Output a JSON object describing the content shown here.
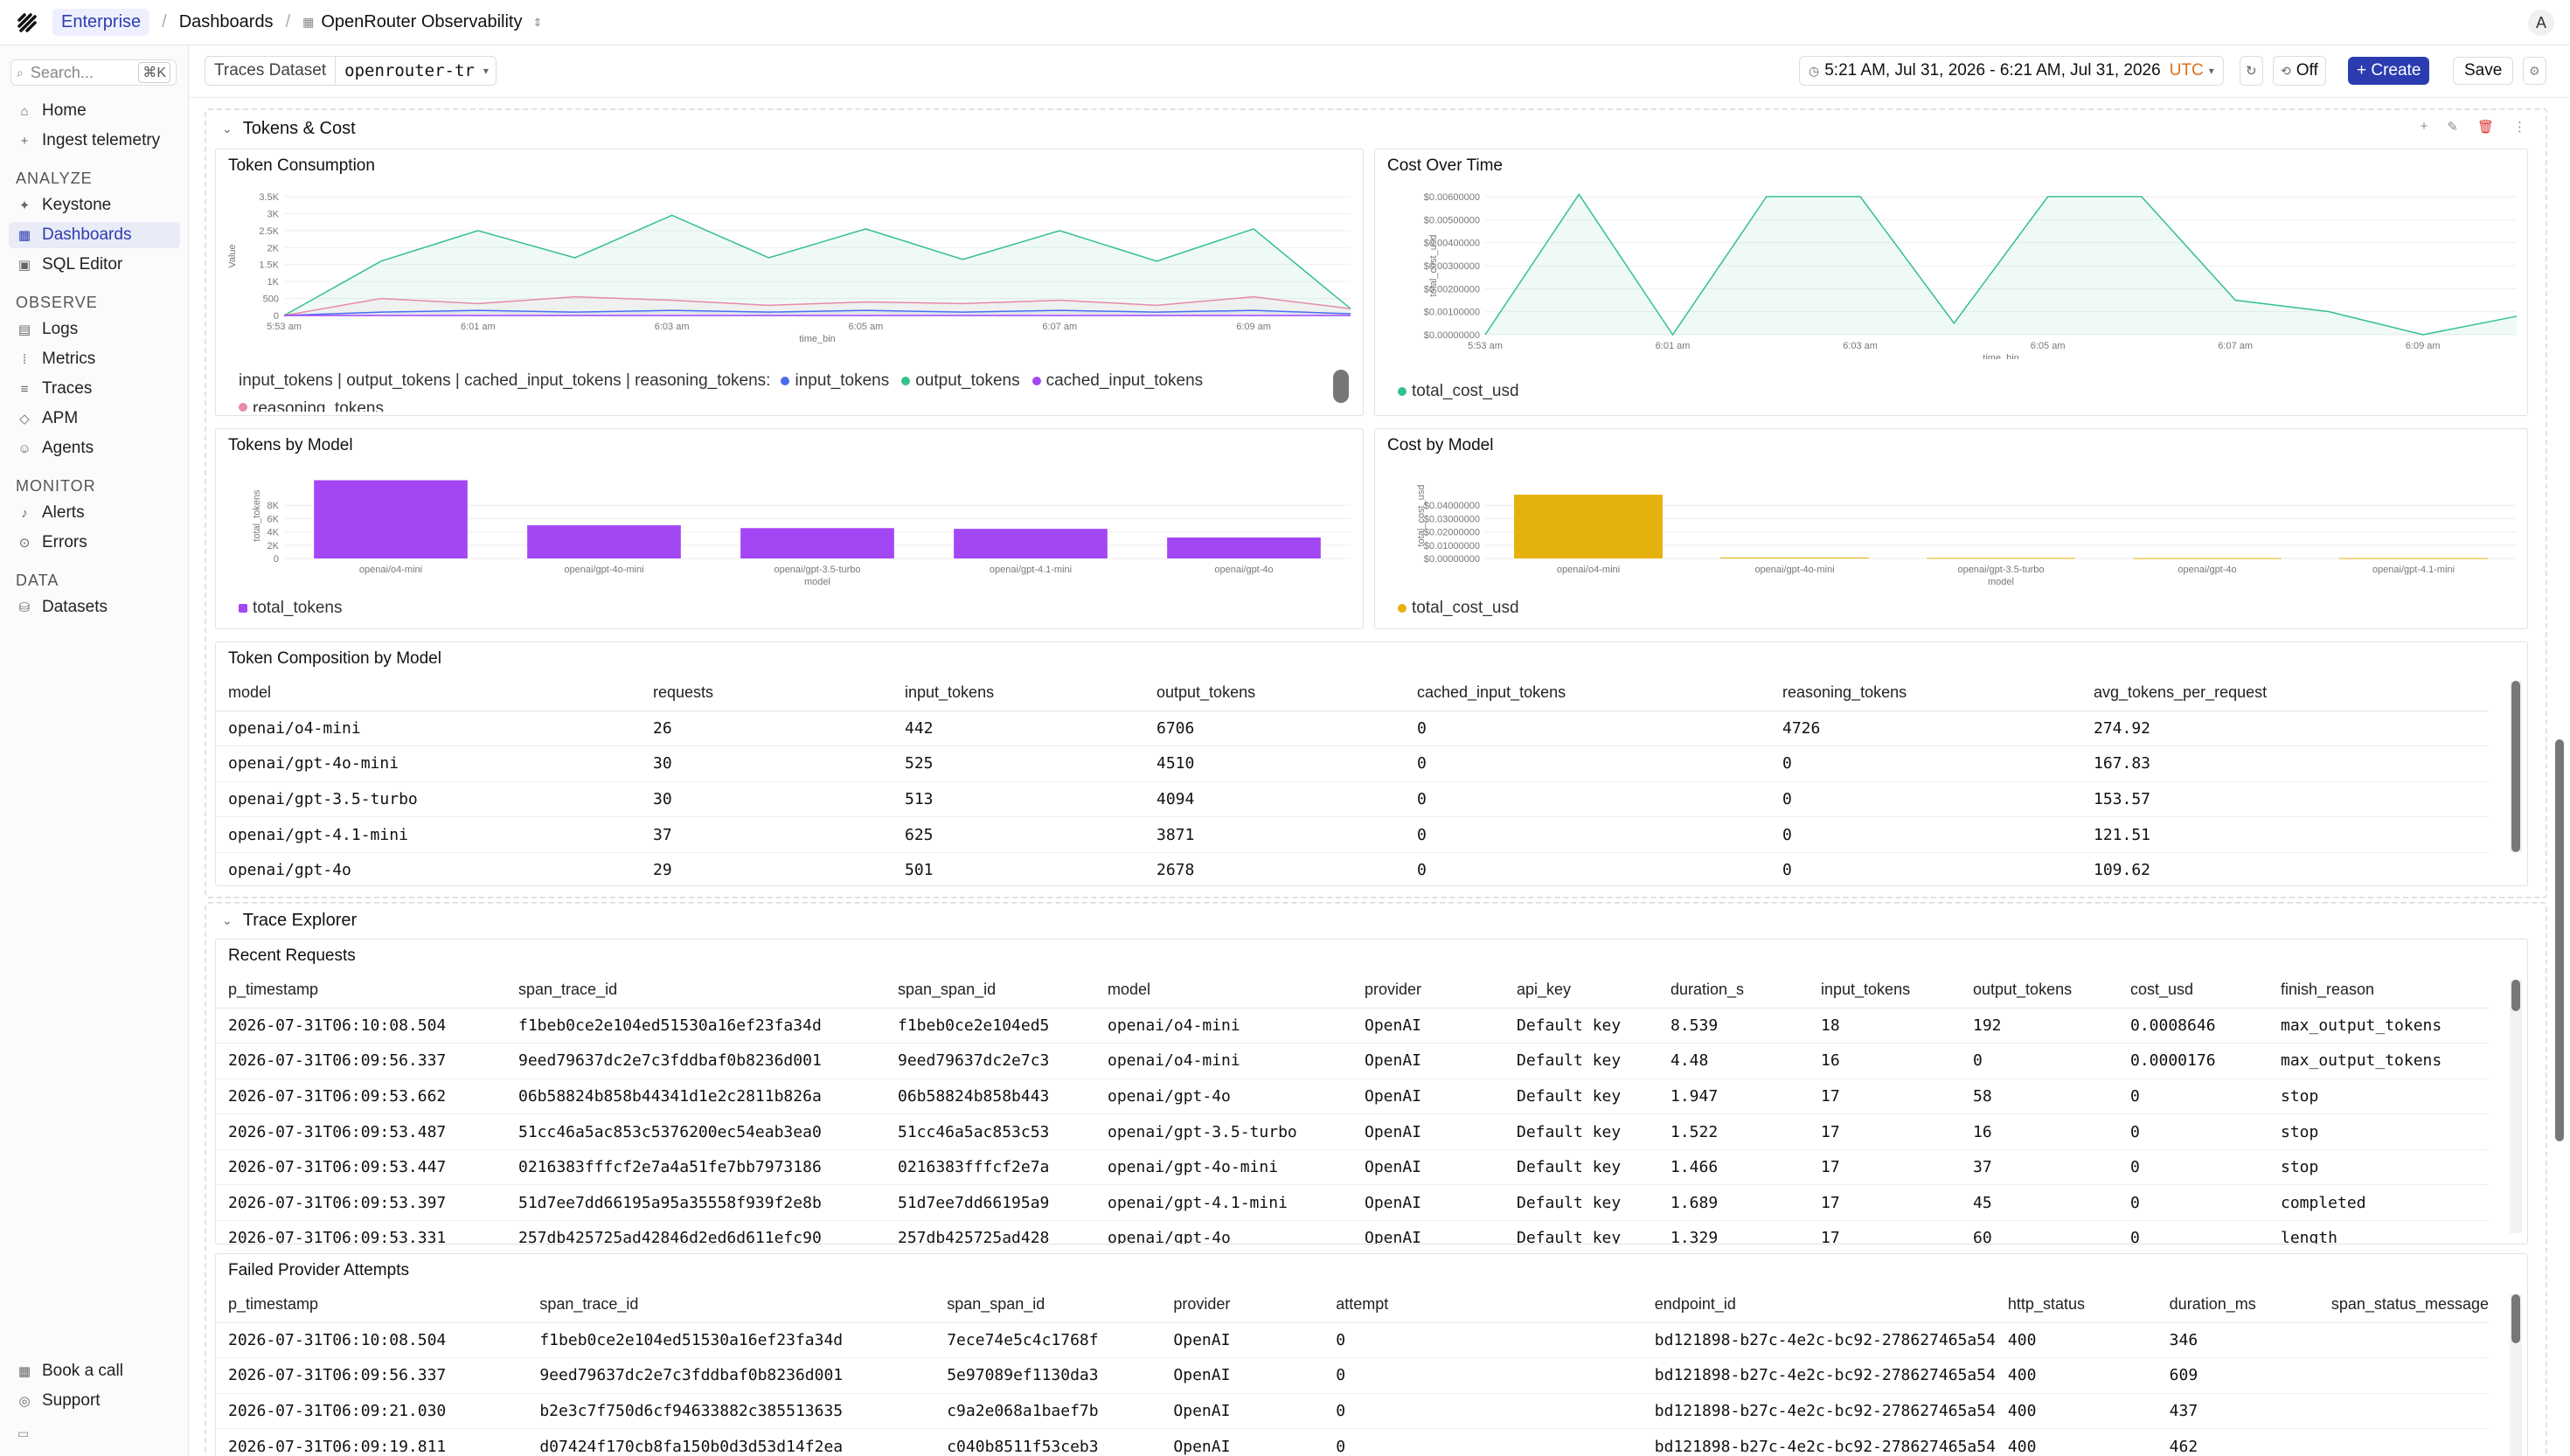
{
  "topbar": {
    "org": "Enterprise",
    "crumb_dashboards": "Dashboards",
    "crumb_dashboard": "OpenRouter Observability",
    "avatar": "A"
  },
  "sidebar": {
    "search_placeholder": "Search...",
    "search_shortcut": "⌘K",
    "top_items": [
      {
        "label": "Home",
        "icon": "home-icon"
      },
      {
        "label": "Ingest telemetry",
        "icon": "plus-icon"
      }
    ],
    "sections": [
      {
        "title": "ANALYZE",
        "items": [
          {
            "label": "Keystone",
            "icon": "sparkle-icon"
          },
          {
            "label": "Dashboards",
            "icon": "grid-icon"
          },
          {
            "label": "SQL Editor",
            "icon": "terminal-icon"
          }
        ]
      },
      {
        "title": "OBSERVE",
        "items": [
          {
            "label": "Logs",
            "icon": "document-icon"
          },
          {
            "label": "Metrics",
            "icon": "chart-icon"
          },
          {
            "label": "Traces",
            "icon": "traces-icon"
          },
          {
            "label": "APM",
            "icon": "apm-icon"
          },
          {
            "label": "Agents",
            "icon": "agent-icon"
          }
        ]
      },
      {
        "title": "MONITOR",
        "items": [
          {
            "label": "Alerts",
            "icon": "bell-icon"
          },
          {
            "label": "Errors",
            "icon": "error-icon"
          }
        ]
      },
      {
        "title": "DATA",
        "items": [
          {
            "label": "Datasets",
            "icon": "database-icon"
          }
        ]
      }
    ],
    "bottom_items": [
      {
        "label": "Book a call",
        "icon": "calendar-icon"
      },
      {
        "label": "Support",
        "icon": "support-icon"
      }
    ]
  },
  "toolbar": {
    "dataset_label": "Traces Dataset",
    "dataset_value": "openrouter-tr",
    "time_range": "5:21 AM, Jul 31, 2026 - 6:21 AM, Jul 31, 2026",
    "timezone": "UTC",
    "refresh": "Off",
    "create": "+ Create",
    "save": "Save"
  },
  "group1": {
    "title": "Tokens & Cost"
  },
  "group2": {
    "title": "Trace Explorer"
  },
  "colors": {
    "accent": "#2b3cb0",
    "green": "#34c08a",
    "blue": "#4b6cf0",
    "purple": "#a347f5",
    "pink": "#e88aa8",
    "gold": "#e5b10d"
  },
  "token_consumption": {
    "title": "Token Consumption",
    "legend_prefix": "input_tokens | output_tokens | cached_input_tokens | reasoning_tokens:",
    "legend": [
      "input_tokens",
      "output_tokens",
      "cached_input_tokens",
      "reasoning_tokens"
    ],
    "chart_data": {
      "type": "area",
      "x": [
        "5:53 am",
        "",
        "6:01 am",
        "",
        "6:03 am",
        "",
        "6:05 am",
        "",
        "6:07 am",
        "",
        "6:09 am",
        ""
      ],
      "xlabel": "time_bin",
      "ylabel": "Value",
      "yticks": [
        "0",
        "500",
        "1K",
        "1.5K",
        "2K",
        "2.5K",
        "3K",
        "3.5K"
      ],
      "ylim": [
        0,
        3500
      ],
      "series": [
        {
          "name": "output_tokens",
          "values": [
            0,
            1600,
            2500,
            1700,
            2950,
            1700,
            2550,
            1650,
            2500,
            1600,
            2550,
            200
          ]
        },
        {
          "name": "reasoning_tokens",
          "values": [
            0,
            500,
            350,
            550,
            450,
            300,
            400,
            350,
            450,
            300,
            550,
            200
          ]
        },
        {
          "name": "input_tokens",
          "values": [
            0,
            100,
            150,
            100,
            150,
            100,
            150,
            100,
            150,
            100,
            150,
            50
          ]
        },
        {
          "name": "cached_input_tokens",
          "values": [
            0,
            0,
            0,
            0,
            0,
            0,
            0,
            0,
            0,
            0,
            0,
            0
          ]
        }
      ]
    }
  },
  "cost_over_time": {
    "title": "Cost Over Time",
    "legend": [
      "total_cost_usd"
    ],
    "chart_data": {
      "type": "area",
      "x": [
        "5:53 am",
        "",
        "6:01 am",
        "",
        "6:03 am",
        "",
        "6:05 am",
        "",
        "6:07 am",
        "",
        "6:09 am",
        ""
      ],
      "xlabel": "time_bin",
      "ylabel": "total_cost_usd",
      "yticks": [
        "$0.00000000",
        "$0.00100000",
        "$0.00200000",
        "$0.00300000",
        "$0.00400000",
        "$0.00500000",
        "$0.00600000"
      ],
      "ylim": [
        0,
        0.006
      ],
      "series": [
        {
          "name": "total_cost_usd",
          "values": [
            0,
            0.0061,
            0,
            0.006,
            0.006,
            0.0005,
            0.006,
            0.006,
            0.0015,
            0.001,
            0,
            0.0008
          ]
        }
      ]
    }
  },
  "tokens_by_model": {
    "title": "Tokens by Model",
    "legend": [
      "total_tokens"
    ],
    "chart_data": {
      "type": "bar",
      "categories": [
        "openai/o4-mini",
        "openai/gpt-4o-mini",
        "openai/gpt-3.5-turbo",
        "openai/gpt-4.1-mini",
        "openai/gpt-4o"
      ],
      "values": [
        11874,
        5035,
        4607,
        4496,
        3179
      ],
      "xlabel": "model",
      "ylabel": "total_tokens",
      "yticks": [
        "0",
        "2K",
        "4K",
        "6K",
        "8K"
      ],
      "ylim": [
        0,
        13000
      ]
    }
  },
  "cost_by_model": {
    "title": "Cost by Model",
    "legend": [
      "total_cost_usd"
    ],
    "chart_data": {
      "type": "bar",
      "categories": [
        "openai/o4-mini",
        "openai/gpt-4o-mini",
        "openai/gpt-3.5-turbo",
        "openai/gpt-4o",
        "openai/gpt-4.1-mini"
      ],
      "values": [
        0.0335,
        0.0005,
        0.0003,
        0.0002,
        0.0002
      ],
      "xlabel": "model",
      "ylabel": "total_cost_usd",
      "yticks": [
        "$0.00000000",
        "$0.01000000",
        "$0.02000000",
        "$0.03000000",
        "$0.04000000"
      ],
      "ylim": [
        0,
        0.045
      ]
    }
  },
  "composition": {
    "title": "Token Composition by Model",
    "columns": [
      "model",
      "requests",
      "input_tokens",
      "output_tokens",
      "cached_input_tokens",
      "reasoning_tokens",
      "avg_tokens_per_request"
    ],
    "rows": [
      [
        "openai/o4-mini",
        "26",
        "442",
        "6706",
        "0",
        "4726",
        "274.92"
      ],
      [
        "openai/gpt-4o-mini",
        "30",
        "525",
        "4510",
        "0",
        "0",
        "167.83"
      ],
      [
        "openai/gpt-3.5-turbo",
        "30",
        "513",
        "4094",
        "0",
        "0",
        "153.57"
      ],
      [
        "openai/gpt-4.1-mini",
        "37",
        "625",
        "3871",
        "0",
        "0",
        "121.51"
      ],
      [
        "openai/gpt-4o",
        "29",
        "501",
        "2678",
        "0",
        "0",
        "109.62"
      ]
    ]
  },
  "recent": {
    "title": "Recent Requests",
    "columns": [
      "p_timestamp",
      "span_trace_id",
      "span_span_id",
      "model",
      "provider",
      "api_key",
      "duration_s",
      "input_tokens",
      "output_tokens",
      "cost_usd",
      "finish_reason"
    ],
    "rows": [
      [
        "2026-07-31T06:10:08.504",
        "f1beb0ce2e104ed51530a16ef23fa34d",
        "f1beb0ce2e104ed5",
        "openai/o4-mini",
        "OpenAI",
        "Default key",
        "8.539",
        "18",
        "192",
        "0.0008646",
        "max_output_tokens"
      ],
      [
        "2026-07-31T06:09:56.337",
        "9eed79637dc2e7c3fddbaf0b8236d001",
        "9eed79637dc2e7c3",
        "openai/o4-mini",
        "OpenAI",
        "Default key",
        "4.48",
        "16",
        "0",
        "0.0000176",
        "max_output_tokens"
      ],
      [
        "2026-07-31T06:09:53.662",
        "06b58824b858b44341d1e2c2811b826a",
        "06b58824b858b443",
        "openai/gpt-4o",
        "OpenAI",
        "Default key",
        "1.947",
        "17",
        "58",
        "0",
        "stop"
      ],
      [
        "2026-07-31T06:09:53.487",
        "51cc46a5ac853c5376200ec54eab3ea0",
        "51cc46a5ac853c53",
        "openai/gpt-3.5-turbo",
        "OpenAI",
        "Default key",
        "1.522",
        "17",
        "16",
        "0",
        "stop"
      ],
      [
        "2026-07-31T06:09:53.447",
        "0216383fffcf2e7a4a51fe7bb7973186",
        "0216383fffcf2e7a",
        "openai/gpt-4o-mini",
        "OpenAI",
        "Default key",
        "1.466",
        "17",
        "37",
        "0",
        "stop"
      ],
      [
        "2026-07-31T06:09:53.397",
        "51d7ee7dd66195a95a35558f939f2e8b",
        "51d7ee7dd66195a9",
        "openai/gpt-4.1-mini",
        "OpenAI",
        "Default key",
        "1.689",
        "17",
        "45",
        "0",
        "completed"
      ],
      [
        "2026-07-31T06:09:53.331",
        "257db425725ad42846d2ed6d611efc90",
        "257db425725ad428",
        "openai/gpt-4o",
        "OpenAI",
        "Default key",
        "1.329",
        "17",
        "60",
        "0",
        "length"
      ]
    ]
  },
  "failed": {
    "title": "Failed Provider Attempts",
    "columns": [
      "p_timestamp",
      "span_trace_id",
      "span_span_id",
      "provider",
      "attempt",
      "endpoint_id",
      "http_status",
      "duration_ms",
      "span_status_message"
    ],
    "rows": [
      [
        "2026-07-31T06:10:08.504",
        "f1beb0ce2e104ed51530a16ef23fa34d",
        "7ece74e5c4c1768f",
        "OpenAI",
        "0",
        "bd121898-b27c-4e2c-bc92-278627465a54",
        "400",
        "346",
        ""
      ],
      [
        "2026-07-31T06:09:56.337",
        "9eed79637dc2e7c3fddbaf0b8236d001",
        "5e97089ef1130da3",
        "OpenAI",
        "0",
        "bd121898-b27c-4e2c-bc92-278627465a54",
        "400",
        "609",
        ""
      ],
      [
        "2026-07-31T06:09:21.030",
        "b2e3c7f750d6cf94633882c385513635",
        "c9a2e068a1baef7b",
        "OpenAI",
        "0",
        "bd121898-b27c-4e2c-bc92-278627465a54",
        "400",
        "437",
        ""
      ],
      [
        "2026-07-31T06:09:19.811",
        "d07424f170cb8fa150b0d3d53d14f2ea",
        "c040b8511f53ceb3",
        "OpenAI",
        "0",
        "bd121898-b27c-4e2c-bc92-278627465a54",
        "400",
        "462",
        ""
      ]
    ]
  }
}
